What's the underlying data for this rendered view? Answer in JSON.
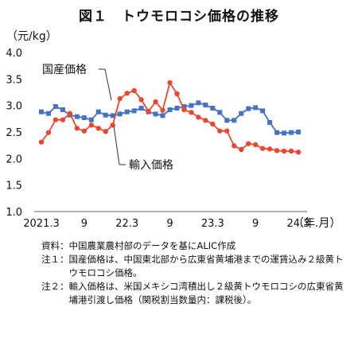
{
  "title": "図１　トウモロコシ価格の推移",
  "chart_data": {
    "type": "line",
    "title": "図１　トウモロコシ価格の推移",
    "ylabel": "（元/kg）",
    "xlabel": "（年.月）",
    "ylim": [
      1.0,
      4.0
    ],
    "yticks": [
      "1.0",
      "1.5",
      "2.0",
      "2.5",
      "3.0",
      "3.5",
      "4.0"
    ],
    "xtick_labels": [
      "2021.3",
      "9",
      "22.3",
      "9",
      "23.3",
      "9",
      "24.3"
    ],
    "legend": "inline annotations",
    "grid": "none",
    "series": [
      {
        "name": "国産価格",
        "color": "#4472C4",
        "marker": "square",
        "values": [
          2.88,
          2.85,
          2.98,
          2.92,
          2.82,
          2.79,
          2.77,
          2.73,
          2.88,
          2.82,
          2.81,
          2.84,
          2.88,
          2.9,
          2.95,
          2.88,
          2.84,
          2.81,
          2.92,
          2.95,
          2.98,
          3.0,
          3.05,
          3.01,
          2.95,
          2.87,
          2.72,
          2.72,
          2.85,
          2.94,
          2.96,
          2.9,
          2.68,
          2.49,
          2.48,
          2.49,
          2.5
        ]
      },
      {
        "name": "輸入価格",
        "color": "#E8492E",
        "marker": "circle",
        "values": [
          2.31,
          2.49,
          2.73,
          2.73,
          2.85,
          2.57,
          2.52,
          2.63,
          2.57,
          2.51,
          2.63,
          3.13,
          3.23,
          3.28,
          3.11,
          2.89,
          3.07,
          2.91,
          3.43,
          3.22,
          2.92,
          2.87,
          2.78,
          2.72,
          2.65,
          2.52,
          2.52,
          2.24,
          2.17,
          2.28,
          2.26,
          2.19,
          2.18,
          2.15,
          2.14,
          2.14,
          2.12
        ]
      }
    ]
  },
  "notes": [
    {
      "key": "資料：",
      "text": "中国農業農村部のデータを基にALIC作成"
    },
    {
      "key": "注１：",
      "text": "国産価格は、中国東北部から広東省黄埔港までの運賃込み２級黄トウモロコシ価格。"
    },
    {
      "key": "注２：",
      "text": "輸入価格は、米国メキシコ湾積出し２級黄トウモロコシの広東省黄埔港引渡し価格（関税割当数量内：課税後）。"
    }
  ]
}
